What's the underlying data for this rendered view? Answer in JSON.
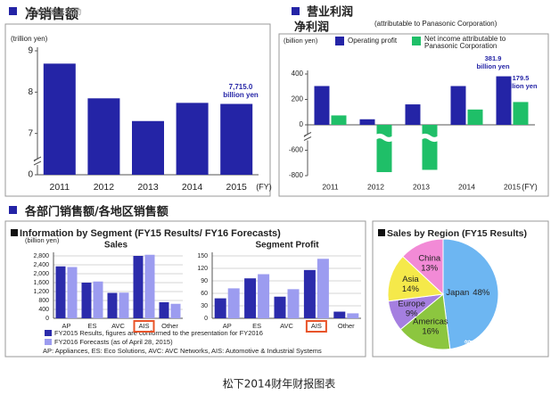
{
  "section_title": "各部门销售额/各地区销售额",
  "segment_header": "Information by Segment (FY15 Results/ FY16 Forecasts)",
  "footnote": "AP: Appliances,  ES: Eco Solutions,  AVC: AVC Networks,  AIS: Automotive & Industrial Systems",
  "caption": "松下2014财年财报图表",
  "watermarks": [
    "D1EV.第一电动",
    "第一电动"
  ],
  "chart_data": [
    {
      "type": "bar",
      "title": "净销售额",
      "y_label": "(trillion yen)",
      "x_label": "(FY)",
      "categories": [
        "2011",
        "2012",
        "2013",
        "2014",
        "2015"
      ],
      "values": [
        8.69,
        7.85,
        7.3,
        7.74,
        7.715
      ],
      "color": "#2424a6",
      "ylim": [
        0,
        9
      ],
      "axis_break": [
        0,
        6
      ],
      "yticks": [
        0,
        7,
        8,
        9
      ],
      "annotation": [
        "7,715.0",
        "billion yen"
      ]
    },
    {
      "type": "bar",
      "title": [
        "营业利润",
        "净利润"
      ],
      "subtitle": "(attributable to Panasonic Corporation)",
      "y_label": "(billion yen)",
      "x_label": "(FY)",
      "categories": [
        "2011",
        "2012",
        "2013",
        "2014",
        "2015"
      ],
      "series": [
        {
          "name": "Operating profit",
          "color": "#2424a6",
          "values": [
            305.3,
            43.7,
            160.9,
            305.1,
            381.9
          ]
        },
        {
          "name": "Net income attributable to Panasonic Corporation",
          "color": "#1fbf68",
          "values": [
            74.0,
            -772.2,
            -754.3,
            120.4,
            179.5
          ]
        }
      ],
      "ylim": [
        -800,
        400
      ],
      "axis_break": [
        -600,
        -200
      ],
      "yticks": [
        -800,
        -600,
        0,
        200,
        400
      ],
      "annotations": [
        [
          "381.9",
          "billion yen"
        ],
        [
          "179.5",
          "billion yen"
        ]
      ]
    },
    {
      "type": "bar",
      "title": "Sales",
      "y_label": "(billion yen)",
      "categories": [
        "AP",
        "ES",
        "AVC",
        "AIS",
        "Other"
      ],
      "series": [
        {
          "name": "FY2015 Results, figures are conformed to the presentation for FY2016",
          "color": "#2b2bab",
          "values": [
            2330,
            1600,
            1140,
            2800,
            720
          ]
        },
        {
          "name": "FY2016 Forecasts (as of April 28, 2015)",
          "color": "#9c9cf0",
          "values": [
            2300,
            1650,
            1150,
            2850,
            650
          ]
        }
      ],
      "ylim": [
        0,
        2800
      ],
      "yticks": [
        0,
        400,
        800,
        {
          "value": 1200,
          "label": "1,200"
        },
        {
          "value": 1600,
          "label": "1,600"
        },
        {
          "value": 2000,
          "label": "2,000"
        },
        {
          "value": 2400,
          "label": "2,400"
        },
        {
          "value": 2800,
          "label": "2,800"
        }
      ],
      "grid": true,
      "highlight_index": 3,
      "highlight_color": "#e8542a"
    },
    {
      "type": "bar",
      "title": "Segment Profit",
      "categories": [
        "AP",
        "ES",
        "AVC",
        "AIS",
        "Other"
      ],
      "series": [
        {
          "color": "#2b2bab",
          "values": [
            48,
            96,
            52,
            116,
            16
          ]
        },
        {
          "color": "#9c9cf0",
          "values": [
            72,
            106,
            70,
            143,
            12
          ]
        }
      ],
      "ylim": [
        0,
        150
      ],
      "yticks": [
        0,
        30,
        60,
        90,
        120,
        150
      ],
      "grid": true,
      "highlight_index": 3,
      "highlight_color": "#e8542a"
    },
    {
      "type": "pie",
      "title": "Sales by Region (FY15 Results)",
      "categories": [
        "Japan",
        "Americas",
        "Europe",
        "Asia",
        "China"
      ],
      "values": [
        48,
        16,
        9,
        14,
        13
      ],
      "value_labels": [
        "48%",
        "16%",
        "9%",
        "14%",
        "13%"
      ],
      "colors": [
        "#6db6f2",
        "#8cc63f",
        "#a57fe0",
        "#f5e94a",
        "#f28ad6"
      ]
    }
  ]
}
